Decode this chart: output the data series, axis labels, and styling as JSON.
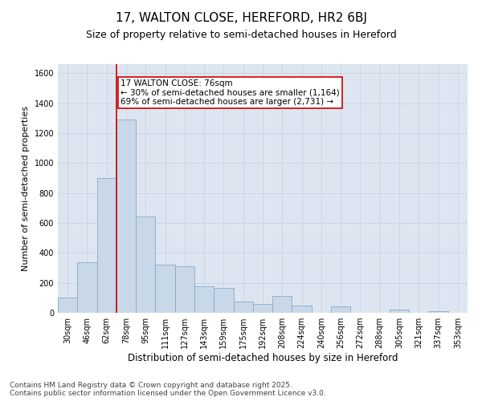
{
  "title_line1": "17, WALTON CLOSE, HEREFORD, HR2 6BJ",
  "title_line2": "Size of property relative to semi-detached houses in Hereford",
  "xlabel": "Distribution of semi-detached houses by size in Hereford",
  "ylabel": "Number of semi-detached properties",
  "categories": [
    "30sqm",
    "46sqm",
    "62sqm",
    "78sqm",
    "95sqm",
    "111sqm",
    "127sqm",
    "143sqm",
    "159sqm",
    "175sqm",
    "192sqm",
    "208sqm",
    "224sqm",
    "240sqm",
    "256sqm",
    "272sqm",
    "288sqm",
    "305sqm",
    "321sqm",
    "337sqm",
    "353sqm"
  ],
  "values": [
    100,
    340,
    900,
    1290,
    640,
    320,
    310,
    175,
    165,
    75,
    60,
    110,
    50,
    0,
    45,
    0,
    0,
    20,
    0,
    10,
    0
  ],
  "bar_color": "#c8d8e8",
  "bar_edge_color": "#8aaac8",
  "annotation_line1": "17 WALTON CLOSE: 76sqm",
  "annotation_line2": "← 30% of semi-detached houses are smaller (1,164)",
  "annotation_line3": "69% of semi-detached houses are larger (2,731) →",
  "annotation_box_facecolor": "#ffffff",
  "annotation_box_edgecolor": "#cc0000",
  "ylim": [
    0,
    1660
  ],
  "yticks": [
    0,
    200,
    400,
    600,
    800,
    1000,
    1200,
    1400,
    1600
  ],
  "grid_color": "#c8d4e4",
  "background_color": "#dde6f0",
  "red_line_color": "#cc0000",
  "red_line_x": 2.5,
  "footer_line1": "Contains HM Land Registry data © Crown copyright and database right 2025.",
  "footer_line2": "Contains public sector information licensed under the Open Government Licence v3.0.",
  "title_fontsize": 11,
  "subtitle_fontsize": 9,
  "tick_fontsize": 7,
  "ylabel_fontsize": 8,
  "xlabel_fontsize": 8.5,
  "footer_fontsize": 6.5,
  "annotation_fontsize": 7.5
}
